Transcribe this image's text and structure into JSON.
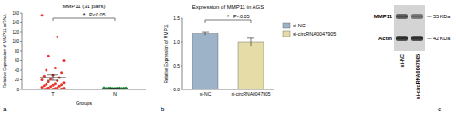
{
  "chart_data": [
    {
      "type": "dot",
      "panel_label": "a",
      "title": "MMP11 (31 pairs)",
      "x_label": "Groups",
      "y_label": "Relative Expression of MMP11 mRNA",
      "categories": [
        "T",
        "N"
      ],
      "groups": [
        {
          "values": [
            155,
            110,
            70,
            60,
            45,
            40,
            35,
            30,
            28,
            25,
            22,
            20,
            18,
            16,
            14,
            12,
            11,
            10,
            9,
            8,
            7,
            6,
            5,
            4,
            3.5,
            3,
            2.5,
            2,
            1.5,
            1,
            0.5
          ],
          "mean": 25,
          "error": 6,
          "color": "#e8352e"
        },
        {
          "values": [
            4,
            3.8,
            3.5,
            3.3,
            3,
            3,
            2.8,
            2.6,
            2.5,
            2.4,
            2.2,
            2.1,
            2,
            2,
            1.9,
            1.8,
            1.7,
            1.6,
            1.5,
            1.5,
            1.4,
            1.3,
            1.2,
            1.1,
            1,
            1,
            0.9,
            0.8,
            0.7,
            0.6,
            0.5
          ],
          "mean": 2,
          "error": 0.3,
          "color": "#2e9a4a"
        }
      ],
      "ylim": [
        0,
        160
      ],
      "yticks": [
        0,
        20,
        40,
        60,
        80,
        100,
        120,
        140,
        160
      ],
      "annotation": "*",
      "p_value": "P<0.05"
    },
    {
      "type": "bar",
      "panel_label": "b",
      "title": "Expression of MMP11 in AGS",
      "y_label": "Relative Expression of MMP11",
      "categories": [
        "si-NC",
        "si-circRNA0047905"
      ],
      "values": [
        1.18,
        1.0
      ],
      "errors": [
        0.03,
        0.08
      ],
      "colors": [
        "#9db3c8",
        "#e6dca8"
      ],
      "ylim": [
        0,
        1.5
      ],
      "yticks": [
        {
          "value": 0,
          "label": "0.0"
        },
        {
          "value": 0.5,
          "label": "0.5"
        },
        {
          "value": 1,
          "label": "1.0"
        },
        {
          "value": 1.5,
          "label": "1.5"
        }
      ],
      "legend": "right",
      "annotation": "*",
      "p_value": "P<0.05"
    }
  ],
  "blot": {
    "panel_label": "c",
    "bands": [
      {
        "label": "MMP11",
        "size": "--- 55 KDa"
      },
      {
        "label": "Actin",
        "size": "--- 42 KDa"
      }
    ],
    "lanes": [
      "si-NC",
      "si-circRNA0047905"
    ]
  }
}
